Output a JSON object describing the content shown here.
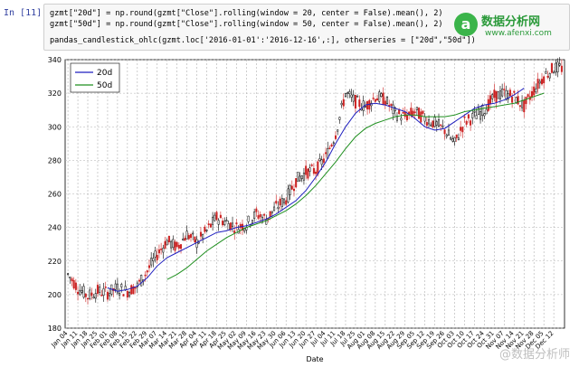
{
  "cell": {
    "prompt": "In [11]:",
    "line1": "gzmt[\"20d\"] = np.round(gzmt[\"Close\"].rolling(window = 20, center = False).mean(), 2)",
    "line2": "gzmt[\"50d\"] = np.round(gzmt[\"Close\"].rolling(window = 50, center = False).mean(), 2)",
    "line3": "pandas_candlestick_ohlc(gzmt.loc['2016-01-01':'2016-12-16',:], otherseries = [\"20d\",\"50d\"])"
  },
  "logo": {
    "title": "数据分析网",
    "url": "www.afenxi.com",
    "mark": "a"
  },
  "watermark": "@数据分析师",
  "colors": {
    "up": "#000000",
    "down": "#cc2222",
    "ma20": "#1f1fbf",
    "ma50": "#1f8f1f",
    "grid": "#b0b0b0"
  },
  "chart_data": {
    "type": "line",
    "xlabel": "Date",
    "ylabel": "",
    "ylim": [
      180,
      340
    ],
    "yticks": [
      180,
      200,
      220,
      240,
      260,
      280,
      300,
      320,
      340
    ],
    "grid": true,
    "legend": "top-left",
    "xticks": [
      "Jan 04",
      "Jan 11",
      "Jan 18",
      "Jan 25",
      "Feb 01",
      "Feb 08",
      "Feb 15",
      "Feb 22",
      "Feb 29",
      "Mar 07",
      "Mar 14",
      "Mar 21",
      "Mar 28",
      "Apr 04",
      "Apr 11",
      "Apr 18",
      "Apr 25",
      "May 02",
      "May 09",
      "May 16",
      "May 23",
      "May 30",
      "Jun 06",
      "Jun 13",
      "Jun 20",
      "Jun 27",
      "Jul 04",
      "Jul 11",
      "Jul 18",
      "Jul 25",
      "Aug 01",
      "Aug 08",
      "Aug 15",
      "Aug 22",
      "Aug 29",
      "Sep 05",
      "Sep 12",
      "Sep 19",
      "Sep 26",
      "Oct 03",
      "Oct 10",
      "Oct 17",
      "Oct 24",
      "Oct 31",
      "Nov 07",
      "Nov 14",
      "Nov 21",
      "Nov 28",
      "Dec 05",
      "Dec 12"
    ],
    "close_by_week": [
      212,
      204,
      199,
      202,
      201,
      204,
      202,
      205,
      214,
      224,
      232,
      228,
      236,
      231,
      238,
      246,
      243,
      240,
      242,
      248,
      245,
      252,
      257,
      268,
      273,
      274,
      282,
      296,
      320,
      315,
      312,
      318,
      316,
      308,
      306,
      309,
      305,
      302,
      298,
      290,
      303,
      306,
      310,
      318,
      320,
      318,
      312,
      322,
      330,
      335
    ],
    "series": [
      {
        "name": "20d",
        "x0": 4,
        "values": [
          204,
          202,
          203,
          205,
          210,
          217,
          222,
          225,
          228,
          231,
          234,
          237,
          238,
          240,
          241,
          243,
          245,
          248,
          252,
          256,
          262,
          270,
          279,
          290,
          300,
          308,
          313,
          314,
          313,
          311,
          309,
          305,
          300,
          298,
          299,
          303,
          307,
          311,
          313,
          314,
          316,
          319,
          323
        ]
      },
      {
        "name": "50d",
        "x0": 10,
        "values": [
          209,
          212,
          216,
          221,
          226,
          230,
          234,
          237,
          240,
          242,
          244,
          247,
          250,
          254,
          259,
          265,
          272,
          279,
          287,
          294,
          299,
          302,
          304,
          306,
          307,
          307,
          306,
          306,
          306,
          307,
          309,
          310,
          311,
          312,
          313,
          314,
          316,
          318,
          320
        ]
      }
    ]
  }
}
